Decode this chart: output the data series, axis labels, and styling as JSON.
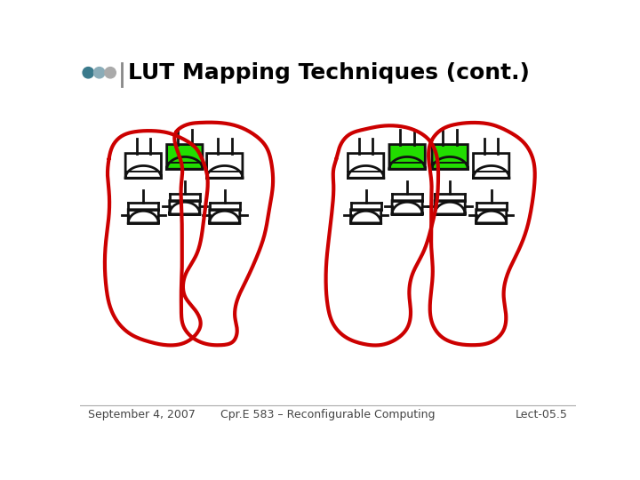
{
  "title": "LUT Mapping Techniques (cont.)",
  "footer_left": "September 4, 2007",
  "footer_center": "Cpr.E 583 – Reconfigurable Computing",
  "footer_right": "Lect-05.5",
  "bg_color": "#ffffff",
  "title_color": "#000000",
  "title_fontsize": 18,
  "footer_fontsize": 9,
  "dot_colors": [
    "#3a7a8c",
    "#8aacb8",
    "#aaaaaa"
  ],
  "gate_color": "#111111",
  "green_color": "#22dd00",
  "red_color": "#cc0000",
  "line_color": "#111111",
  "lw_gate": 2.0,
  "lw_red": 3.0
}
